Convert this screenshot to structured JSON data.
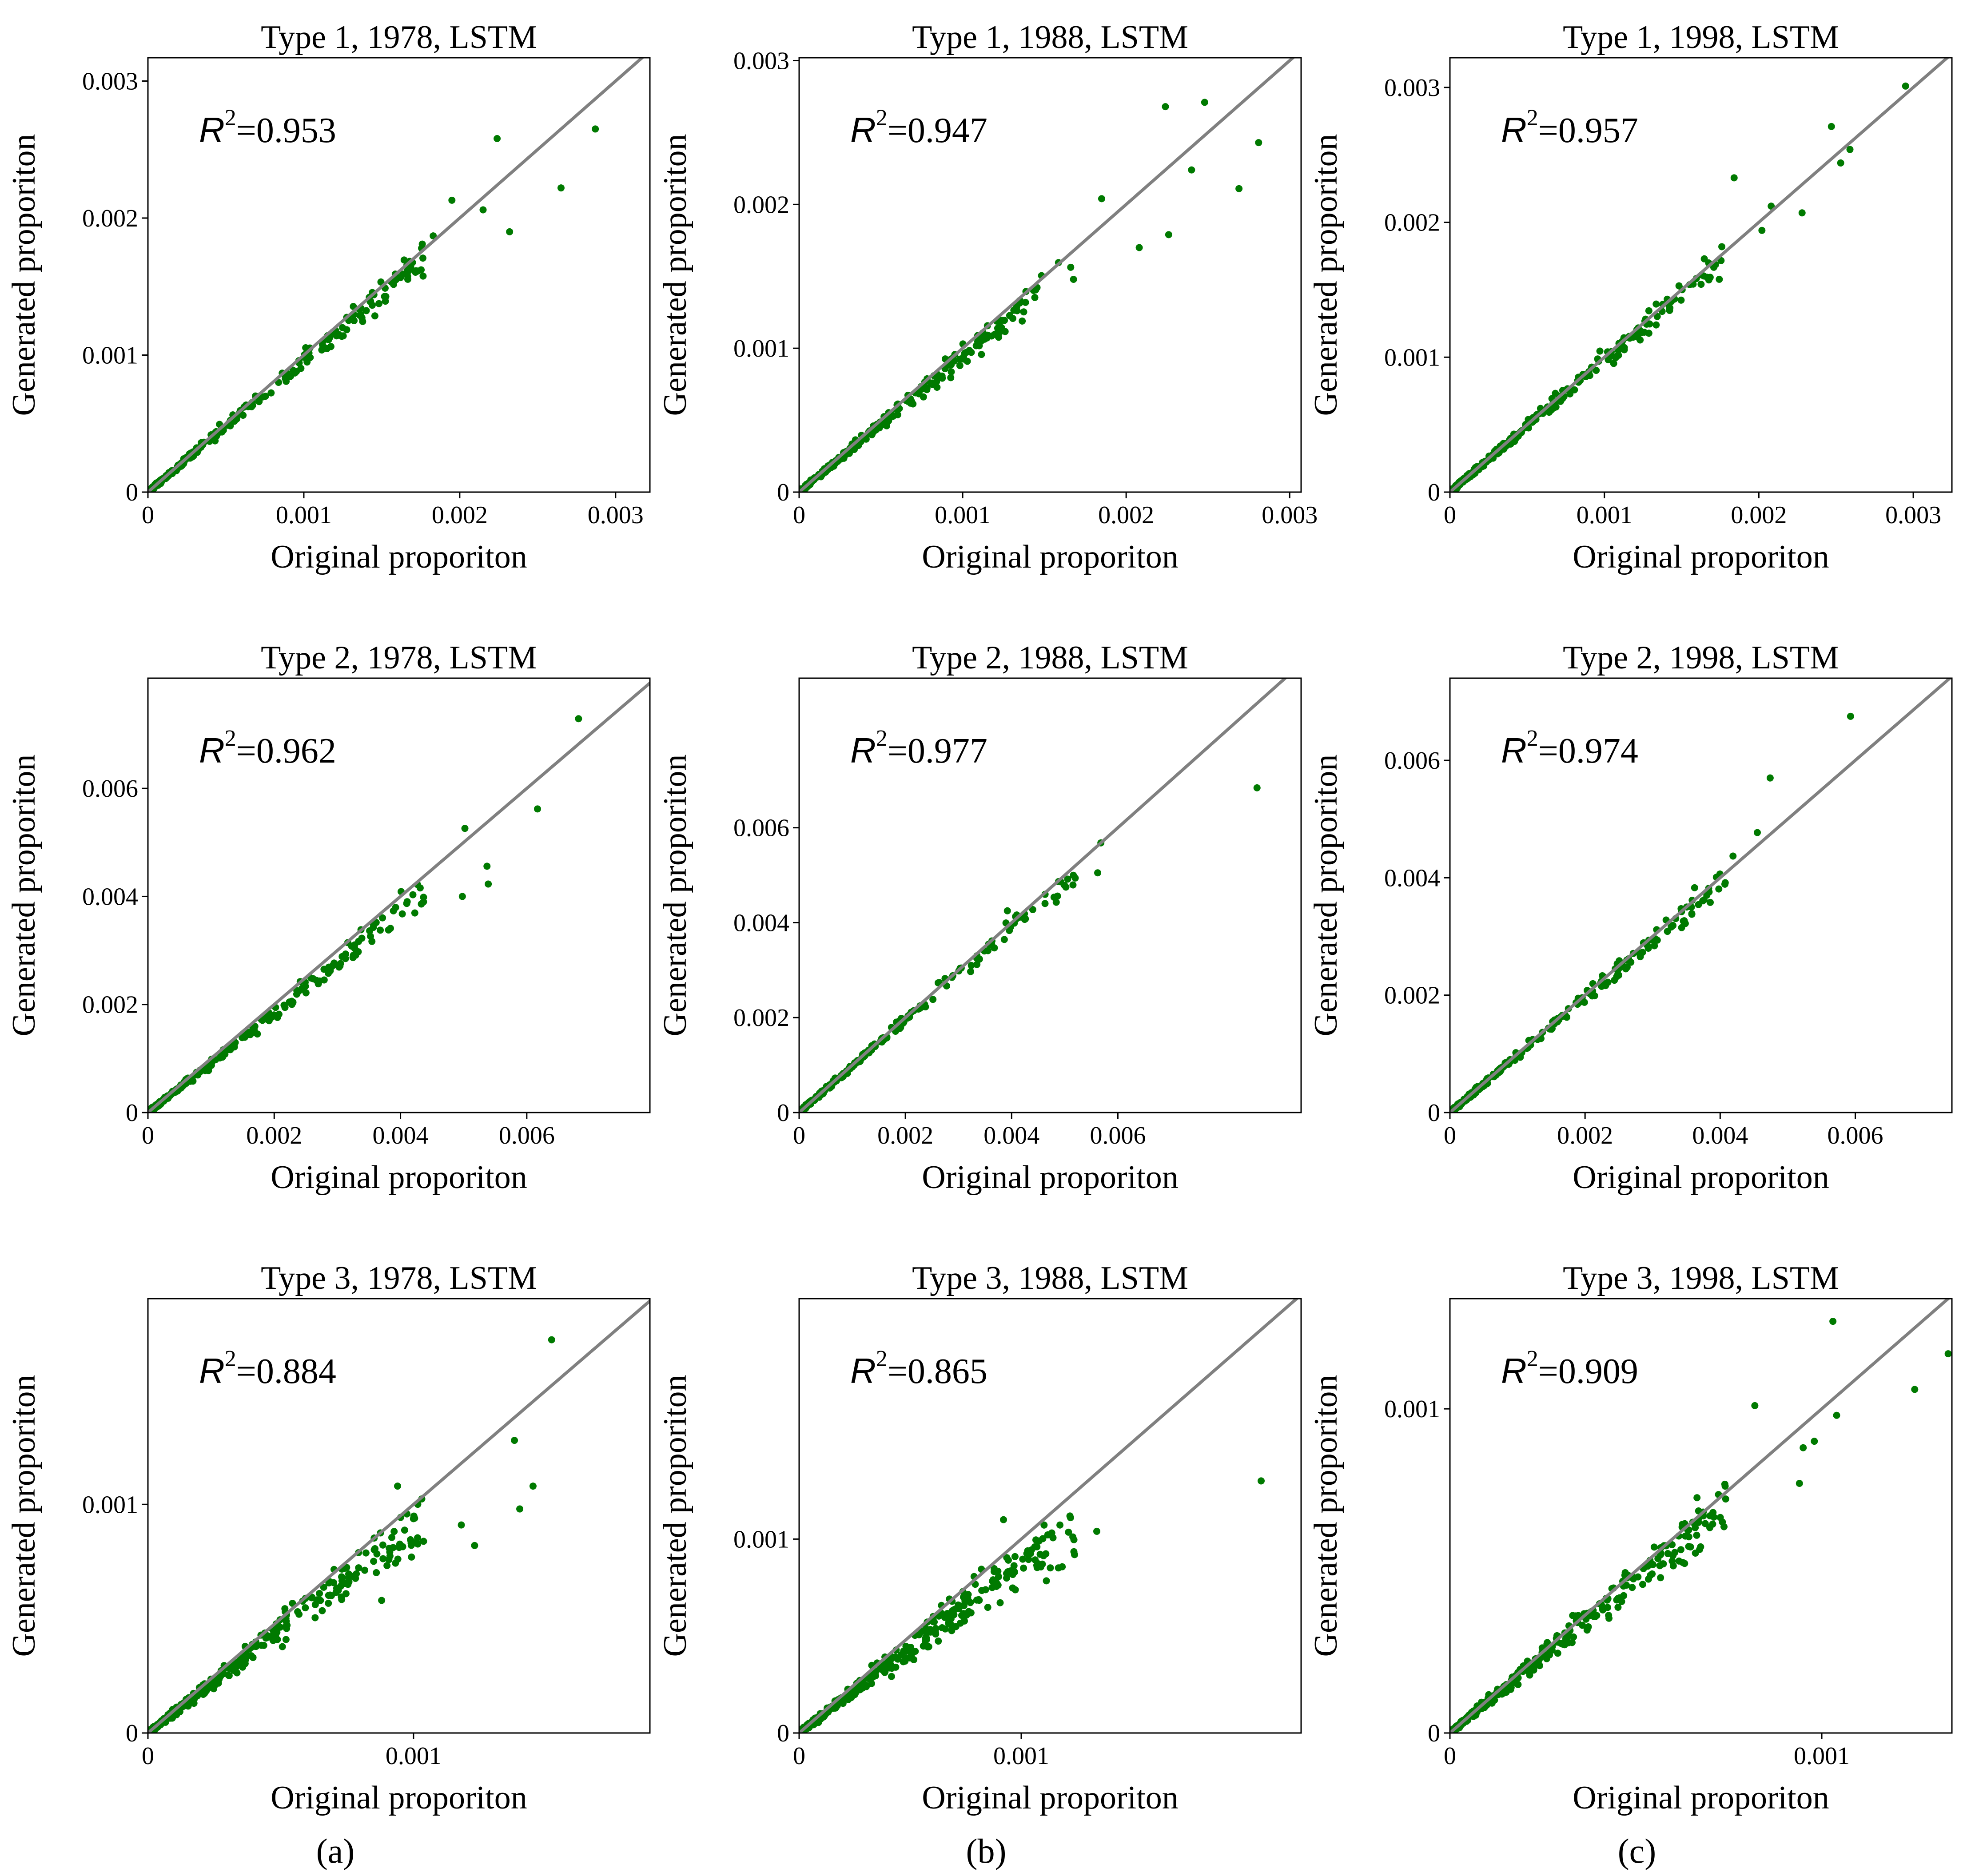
{
  "chart_data": [
    {
      "type": "scatter",
      "title": "Type 1, 1978, LSTM",
      "xlabel": "Original proporiton",
      "ylabel": "Generated proporiton",
      "r2_label": "=0.953",
      "r2_symbol": "R",
      "r2_sup": "2",
      "xlim": [
        0,
        0.00322
      ],
      "ylim": [
        0,
        0.00317
      ],
      "xticks": [
        {
          "v": 0,
          "label": "0"
        },
        {
          "v": 0.001,
          "label": "0.001"
        },
        {
          "v": 0.002,
          "label": "0.002"
        },
        {
          "v": 0.003,
          "label": "0.003"
        }
      ],
      "yticks": [
        {
          "v": 0,
          "label": "0"
        },
        {
          "v": 0.001,
          "label": "0.001"
        },
        {
          "v": 0.002,
          "label": "0.002"
        },
        {
          "v": 0.003,
          "label": "0.003"
        }
      ],
      "series": [
        {
          "name": "points",
          "color": "#007a00",
          "n": 320,
          "slope": 0.96,
          "noise": 0.11,
          "seed": 11,
          "outliers": [
            [
              0.00287,
              0.00265
            ],
            [
              0.00265,
              0.00222
            ],
            [
              0.00232,
              0.0019
            ],
            [
              0.00224,
              0.00258
            ],
            [
              0.00195,
              0.00213
            ],
            [
              0.00215,
              0.00206
            ],
            [
              0.00176,
              0.00181
            ],
            [
              0.00183,
              0.00187
            ]
          ]
        }
      ],
      "line": {
        "color": "#808080",
        "from": [
          0,
          0
        ],
        "to": [
          0.00322,
          0.00322
        ]
      }
    },
    {
      "type": "scatter",
      "title": "Type 1, 1988, LSTM",
      "xlabel": "Original proporiton",
      "ylabel": "Generated proporiton",
      "r2_label": "=0.947",
      "r2_symbol": "R",
      "r2_sup": "2",
      "xlim": [
        0,
        0.00307
      ],
      "ylim": [
        0,
        0.00302
      ],
      "xticks": [
        {
          "v": 0,
          "label": "0"
        },
        {
          "v": 0.001,
          "label": "0.001"
        },
        {
          "v": 0.002,
          "label": "0.002"
        },
        {
          "v": 0.003,
          "label": "0.003"
        }
      ],
      "yticks": [
        {
          "v": 0,
          "label": "0"
        },
        {
          "v": 0.001,
          "label": "0.001"
        },
        {
          "v": 0.002,
          "label": "0.002"
        },
        {
          "v": 0.003,
          "label": "0.003"
        }
      ],
      "series": [
        {
          "name": "points",
          "color": "#007a00",
          "n": 320,
          "slope": 0.95,
          "noise": 0.12,
          "seed": 23,
          "outliers": [
            [
              0.00281,
              0.00243
            ],
            [
              0.00269,
              0.00211
            ],
            [
              0.00248,
              0.00271
            ],
            [
              0.00224,
              0.00268
            ],
            [
              0.00226,
              0.00179
            ],
            [
              0.00208,
              0.0017
            ],
            [
              0.00185,
              0.00204
            ],
            [
              0.0024,
              0.00224
            ]
          ]
        }
      ],
      "line": {
        "color": "#808080",
        "from": [
          0,
          0
        ],
        "to": [
          0.00307,
          0.00307
        ]
      }
    },
    {
      "type": "scatter",
      "title": "Type 1, 1998, LSTM",
      "xlabel": "Original proporiton",
      "ylabel": "Generated proporiton",
      "r2_label": "=0.957",
      "r2_symbol": "R",
      "r2_sup": "2",
      "xlim": [
        0,
        0.00325
      ],
      "ylim": [
        0,
        0.00322
      ],
      "xticks": [
        {
          "v": 0,
          "label": "0"
        },
        {
          "v": 0.001,
          "label": "0.001"
        },
        {
          "v": 0.002,
          "label": "0.002"
        },
        {
          "v": 0.003,
          "label": "0.003"
        }
      ],
      "yticks": [
        {
          "v": 0,
          "label": "0"
        },
        {
          "v": 0.001,
          "label": "0.001"
        },
        {
          "v": 0.002,
          "label": "0.002"
        },
        {
          "v": 0.003,
          "label": "0.003"
        }
      ],
      "series": [
        {
          "name": "points",
          "color": "#007a00",
          "n": 320,
          "slope": 0.98,
          "noise": 0.11,
          "seed": 37,
          "outliers": [
            [
              0.00295,
              0.00301
            ],
            [
              0.00259,
              0.00254
            ],
            [
              0.00247,
              0.00271
            ],
            [
              0.00253,
              0.00244
            ],
            [
              0.00184,
              0.00233
            ],
            [
              0.00228,
              0.00207
            ],
            [
              0.00208,
              0.00212
            ],
            [
              0.00202,
              0.00194
            ]
          ]
        }
      ],
      "line": {
        "color": "#808080",
        "from": [
          0,
          0
        ],
        "to": [
          0.00325,
          0.00325
        ]
      }
    },
    {
      "type": "scatter",
      "title": "Type 2, 1978, LSTM",
      "xlabel": "Original proporiton",
      "ylabel": "Generated proporiton",
      "r2_label": "=0.962",
      "r2_symbol": "R",
      "r2_sup": "2",
      "xlim": [
        0,
        0.00795
      ],
      "ylim": [
        0,
        0.00804
      ],
      "xticks": [
        {
          "v": 0,
          "label": "0"
        },
        {
          "v": 0.002,
          "label": "0.002"
        },
        {
          "v": 0.004,
          "label": "0.004"
        },
        {
          "v": 0.006,
          "label": "0.006"
        }
      ],
      "yticks": [
        {
          "v": 0,
          "label": "0"
        },
        {
          "v": 0.002,
          "label": "0.002"
        },
        {
          "v": 0.004,
          "label": "0.004"
        },
        {
          "v": 0.006,
          "label": "0.006"
        }
      ],
      "series": [
        {
          "name": "points",
          "color": "#007a00",
          "n": 300,
          "slope": 0.92,
          "noise": 0.1,
          "seed": 41,
          "outliers": [
            [
              0.00682,
              0.00729
            ],
            [
              0.00617,
              0.00562
            ],
            [
              0.00502,
              0.00526
            ],
            [
              0.00539,
              0.00423
            ],
            [
              0.00537,
              0.00456
            ],
            [
              0.00498,
              0.004
            ],
            [
              0.00427,
              0.00422
            ],
            [
              0.00401,
              0.00409
            ]
          ]
        }
      ],
      "line": {
        "color": "#808080",
        "from": [
          0,
          0
        ],
        "to": [
          0.00804,
          0.00804
        ]
      }
    },
    {
      "type": "scatter",
      "title": "Type 2, 1988, LSTM",
      "xlabel": "Original proporiton",
      "ylabel": "Generated proporiton",
      "r2_label": "=0.977",
      "r2_symbol": "R",
      "r2_sup": "2",
      "xlim": [
        0,
        0.00945
      ],
      "ylim": [
        0,
        0.00915
      ],
      "xticks": [
        {
          "v": 0,
          "label": "0"
        },
        {
          "v": 0.002,
          "label": "0.002"
        },
        {
          "v": 0.004,
          "label": "0.004"
        },
        {
          "v": 0.006,
          "label": "0.006"
        }
      ],
      "yticks": [
        {
          "v": 0,
          "label": "0"
        },
        {
          "v": 0.002,
          "label": "0.002"
        },
        {
          "v": 0.004,
          "label": "0.004"
        },
        {
          "v": 0.006,
          "label": "0.006"
        }
      ],
      "series": [
        {
          "name": "points",
          "color": "#007a00",
          "n": 260,
          "slope": 0.98,
          "noise": 0.08,
          "seed": 53,
          "outliers": [
            [
              0.00862,
              0.00684
            ],
            [
              0.00568,
              0.00568
            ],
            [
              0.00562,
              0.00505
            ],
            [
              0.00484,
              0.00443
            ],
            [
              0.00405,
              0.00399
            ],
            [
              0.00392,
              0.00425
            ]
          ]
        }
      ],
      "line": {
        "color": "#808080",
        "from": [
          0,
          0
        ],
        "to": [
          0.00945,
          0.00945
        ]
      }
    },
    {
      "type": "scatter",
      "title": "Type 2, 1998, LSTM",
      "xlabel": "Original proporiton",
      "ylabel": "Generated proporiton",
      "r2_label": "=0.974",
      "r2_symbol": "R",
      "r2_sup": "2",
      "xlim": [
        0,
        0.00743
      ],
      "ylim": [
        0,
        0.0074
      ],
      "xticks": [
        {
          "v": 0,
          "label": "0"
        },
        {
          "v": 0.002,
          "label": "0.002"
        },
        {
          "v": 0.004,
          "label": "0.004"
        },
        {
          "v": 0.006,
          "label": "0.006"
        }
      ],
      "yticks": [
        {
          "v": 0,
          "label": "0"
        },
        {
          "v": 0.002,
          "label": "0.002"
        },
        {
          "v": 0.004,
          "label": "0.004"
        },
        {
          "v": 0.006,
          "label": "0.006"
        }
      ],
      "series": [
        {
          "name": "points",
          "color": "#007a00",
          "n": 280,
          "slope": 0.98,
          "noise": 0.09,
          "seed": 67,
          "outliers": [
            [
              0.00593,
              0.00675
            ],
            [
              0.00474,
              0.0057
            ],
            [
              0.00455,
              0.00477
            ],
            [
              0.00419,
              0.00437
            ],
            [
              0.00407,
              0.00389
            ],
            [
              0.00383,
              0.00382
            ],
            [
              0.0032,
              0.00328
            ],
            [
              0.00301,
              0.00293
            ]
          ]
        }
      ],
      "line": {
        "color": "#808080",
        "from": [
          0,
          0
        ],
        "to": [
          0.00743,
          0.00743
        ]
      }
    },
    {
      "type": "scatter",
      "title": "Type 3, 1978, LSTM",
      "xlabel": "Original proporiton",
      "ylabel": "Generated proporiton",
      "r2_label": "=0.884",
      "r2_symbol": "R",
      "r2_sup": "2",
      "xlim": [
        0,
        0.00189
      ],
      "ylim": [
        0,
        0.0019
      ],
      "xticks": [
        {
          "v": 0,
          "label": "0"
        },
        {
          "v": 0.001,
          "label": "0.001"
        }
      ],
      "yticks": [
        {
          "v": 0,
          "label": "0"
        },
        {
          "v": 0.001,
          "label": "0.001"
        }
      ],
      "series": [
        {
          "name": "points",
          "color": "#007a00",
          "n": 420,
          "slope": 0.9,
          "noise": 0.22,
          "seed": 71,
          "outliers": [
            [
              0.00152,
              0.00172
            ],
            [
              0.00138,
              0.00128
            ],
            [
              0.00145,
              0.00108
            ],
            [
              0.0014,
              0.00098
            ],
            [
              0.00123,
              0.00082
            ],
            [
              0.00118,
              0.00091
            ],
            [
              0.00094,
              0.00108
            ],
            [
              0.00088,
              0.00058
            ]
          ]
        }
      ],
      "line": {
        "color": "#808080",
        "from": [
          0,
          0
        ],
        "to": [
          0.0019,
          0.0019
        ]
      }
    },
    {
      "type": "scatter",
      "title": "Type 3, 1988, LSTM",
      "xlabel": "Original proporiton",
      "ylabel": "Generated proporiton",
      "r2_label": "=0.865",
      "r2_symbol": "R",
      "r2_sup": "2",
      "xlim": [
        0,
        0.00226
      ],
      "ylim": [
        0,
        0.00224
      ],
      "xticks": [
        {
          "v": 0,
          "label": "0"
        },
        {
          "v": 0.001,
          "label": "0.001"
        }
      ],
      "yticks": [
        {
          "v": 0,
          "label": "0"
        },
        {
          "v": 0.001,
          "label": "0.001"
        }
      ],
      "series": [
        {
          "name": "points",
          "color": "#007a00",
          "n": 420,
          "slope": 0.88,
          "noise": 0.24,
          "seed": 83,
          "outliers": [
            [
              0.00208,
              0.0013
            ],
            [
              0.00134,
              0.00104
            ],
            [
              0.00124,
              0.00092
            ],
            [
              0.00108,
              0.00099
            ],
            [
              0.00092,
              0.0011
            ],
            [
              0.00097,
              0.00083
            ]
          ]
        }
      ],
      "line": {
        "color": "#808080",
        "from": [
          0,
          0
        ],
        "to": [
          0.00226,
          0.00226
        ]
      }
    },
    {
      "type": "scatter",
      "title": "Type 3, 1998, LSTM",
      "xlabel": "Original proporiton",
      "ylabel": "Generated proporiton",
      "r2_label": "=0.909",
      "r2_symbol": "R",
      "r2_sup": "2",
      "xlim": [
        0,
        0.00135
      ],
      "ylim": [
        0,
        0.00134
      ],
      "xticks": [
        {
          "v": 0,
          "label": "0"
        },
        {
          "v": 0.001,
          "label": "0.001"
        }
      ],
      "yticks": [
        {
          "v": 0,
          "label": "0"
        },
        {
          "v": 0.001,
          "label": "0.001"
        }
      ],
      "series": [
        {
          "name": "points",
          "color": "#007a00",
          "n": 400,
          "slope": 0.95,
          "noise": 0.19,
          "seed": 97,
          "outliers": [
            [
              0.00134,
              0.00117
            ],
            [
              0.00103,
              0.00127
            ],
            [
              0.00125,
              0.00106
            ],
            [
              0.00104,
              0.00098
            ],
            [
              0.00098,
              0.0009
            ],
            [
              0.00095,
              0.00088
            ],
            [
              0.00082,
              0.00101
            ],
            [
              0.00094,
              0.00077
            ]
          ]
        }
      ],
      "line": {
        "color": "#808080",
        "from": [
          0,
          0
        ],
        "to": [
          0.00135,
          0.00135
        ]
      }
    }
  ],
  "captions": [
    "(a)",
    "(b)",
    "(c)"
  ]
}
